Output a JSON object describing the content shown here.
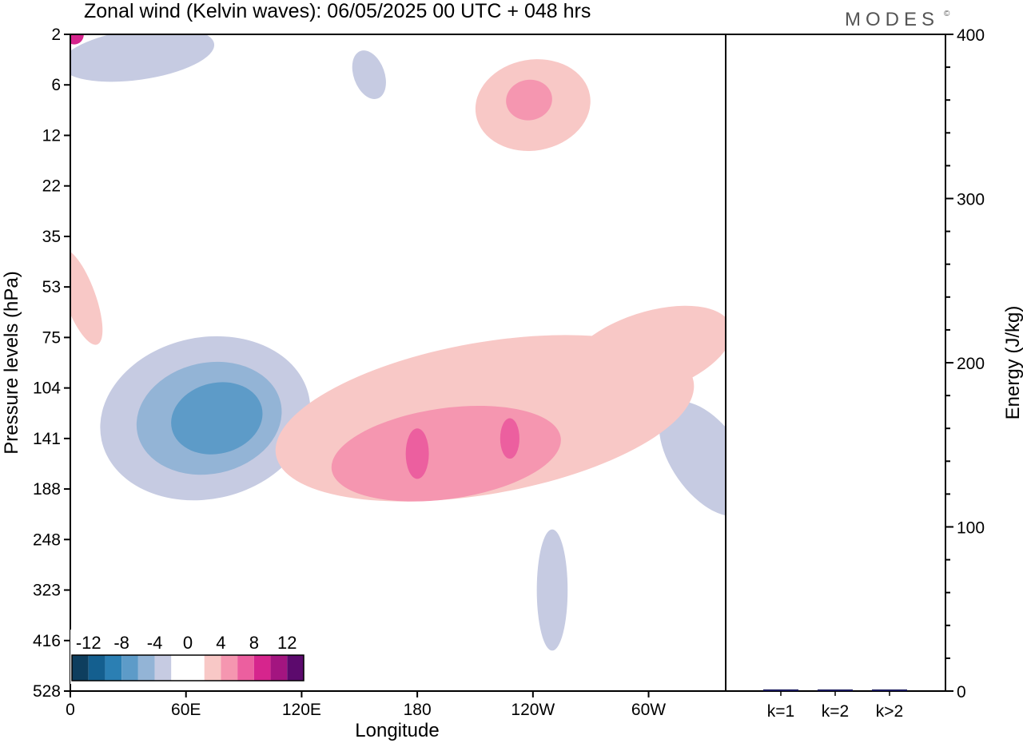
{
  "title": "Zonal wind (Kelvin waves):  06/05/2025  00 UTC  + 048 hrs",
  "logo": "MODES",
  "logo_mark": "©",
  "colors": {
    "neg": [
      "#0e3e5e",
      "#145f8f",
      "#2b7fb3",
      "#5d9bc8",
      "#93b4d6",
      "#c6cbe2"
    ],
    "zero": "#ffffff",
    "pos": [
      "#f8c8c6",
      "#f596b0",
      "#ec5f9f",
      "#d6258d",
      "#a31580",
      "#5c0a6d"
    ]
  },
  "chart_data": [
    {
      "type": "heatmap",
      "title": "Zonal wind (Kelvin waves):  06/05/2025  00 UTC  + 048 hrs",
      "xlabel": "Longitude",
      "ylabel": "Pressure levels (hPa)",
      "x_ticks": [
        "0",
        "60E",
        "120E",
        "180",
        "120W",
        "60W"
      ],
      "x_range": [
        0,
        340
      ],
      "y_ticks": [
        "2",
        "6",
        "12",
        "22",
        "35",
        "53",
        "75",
        "104",
        "141",
        "188",
        "248",
        "323",
        "416",
        "528"
      ],
      "colorbar_labels": [
        "-12",
        "-8",
        "-4",
        "0",
        "4",
        "8",
        "12"
      ],
      "colorbar_levels": [
        -14,
        -12,
        -10,
        -8,
        -6,
        -4,
        -2,
        2,
        4,
        6,
        8,
        10,
        12,
        14
      ],
      "contours": [
        {
          "value": -2,
          "lon": 70,
          "level": 7.6,
          "w": 55,
          "h": 1.6,
          "angle": -12
        },
        {
          "value": -4,
          "lon": 72,
          "level": 7.6,
          "w": 38,
          "h": 1.1,
          "angle": -12
        },
        {
          "value": -6,
          "lon": 76,
          "level": 7.6,
          "w": 24,
          "h": 0.7,
          "angle": -14
        },
        {
          "value": -2,
          "lon": 35,
          "level": 0.4,
          "w": 40,
          "h": 0.5,
          "angle": -8
        },
        {
          "value": -2,
          "lon": 155,
          "level": 0.8,
          "w": 8,
          "h": 0.5,
          "angle": -20
        },
        {
          "value": -2,
          "lon": 250,
          "level": 11.0,
          "w": 8,
          "h": 1.2,
          "angle": 0
        },
        {
          "value": -2,
          "lon": 330,
          "level": 8.4,
          "w": 18,
          "h": 1.3,
          "angle": -35
        },
        {
          "value": 2,
          "lon": 215,
          "level": 7.6,
          "w": 110,
          "h": 1.5,
          "angle": -10
        },
        {
          "value": 4,
          "lon": 195,
          "level": 8.3,
          "w": 60,
          "h": 0.9,
          "angle": -8
        },
        {
          "value": 6,
          "lon": 180,
          "level": 8.3,
          "w": 6,
          "h": 0.5,
          "angle": 0
        },
        {
          "value": 6,
          "lon": 228,
          "level": 8.0,
          "w": 5,
          "h": 0.4,
          "angle": 0
        },
        {
          "value": 2,
          "lon": 240,
          "level": 1.4,
          "w": 30,
          "h": 0.9,
          "angle": -10
        },
        {
          "value": 4,
          "lon": 238,
          "level": 1.3,
          "w": 12,
          "h": 0.4,
          "angle": -10
        },
        {
          "value": 2,
          "lon": 300,
          "level": 6.3,
          "w": 45,
          "h": 0.8,
          "angle": -18
        },
        {
          "value": 2,
          "lon": 5,
          "level": 5.2,
          "w": 8,
          "h": 1.0,
          "angle": -20
        },
        {
          "value": 8,
          "lon": 2,
          "level": 0.0,
          "w": 5,
          "h": 0.2,
          "angle": 0
        }
      ]
    },
    {
      "type": "bar",
      "categories": [
        "k=1",
        "k=2",
        "k>2"
      ],
      "values": [
        1.0,
        0.1,
        0.3
      ],
      "ylabel": "Energy (J/kg)",
      "ylim": [
        0,
        400
      ],
      "y_ticks": [
        "0",
        "100",
        "200",
        "300",
        "400"
      ],
      "bar_color": "#1a1a5e"
    }
  ]
}
